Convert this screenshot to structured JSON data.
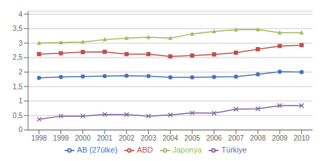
{
  "chart_data": {
    "type": "line",
    "x": [
      1998,
      1999,
      2000,
      2001,
      2002,
      2003,
      2004,
      2005,
      2006,
      2007,
      2008,
      2009,
      2010
    ],
    "series": [
      {
        "name": "AB (27ülke)",
        "color": "#4472C4",
        "marker": "circle",
        "values": [
          1.8,
          1.83,
          1.85,
          1.86,
          1.87,
          1.86,
          1.82,
          1.82,
          1.83,
          1.84,
          1.92,
          2.01,
          2.0
        ]
      },
      {
        "name": "ABD",
        "color": "#C0504D",
        "marker": "square",
        "values": [
          2.62,
          2.65,
          2.69,
          2.7,
          2.62,
          2.62,
          2.54,
          2.57,
          2.61,
          2.67,
          2.79,
          2.9,
          2.93
        ]
      },
      {
        "name": "Japonya",
        "color": "#9BBB59",
        "marker": "triangle",
        "values": [
          3.0,
          3.02,
          3.04,
          3.12,
          3.17,
          3.2,
          3.17,
          3.32,
          3.4,
          3.46,
          3.47,
          3.36,
          3.36
        ]
      },
      {
        "name": "Türkiye",
        "color": "#8064A2",
        "marker": "x",
        "values": [
          0.37,
          0.48,
          0.48,
          0.54,
          0.53,
          0.48,
          0.52,
          0.59,
          0.58,
          0.72,
          0.73,
          0.84,
          0.84
        ]
      }
    ],
    "xlim": [
      1997.5,
      2010.5
    ],
    "xticks": [
      1998,
      1999,
      2000,
      2001,
      2002,
      2003,
      2004,
      2005,
      2006,
      2007,
      2008,
      2009,
      2010
    ],
    "ylim": [
      0,
      4.1
    ],
    "yticks": [
      0,
      {
        "value": 0.5,
        "label": "0,5"
      },
      1,
      {
        "value": 1.5,
        "label": "1,5"
      },
      2,
      {
        "value": 2.5,
        "label": "2,5"
      },
      3,
      {
        "value": 3.5,
        "label": "3,5"
      },
      4
    ],
    "grid": true,
    "legend": "bottom"
  }
}
